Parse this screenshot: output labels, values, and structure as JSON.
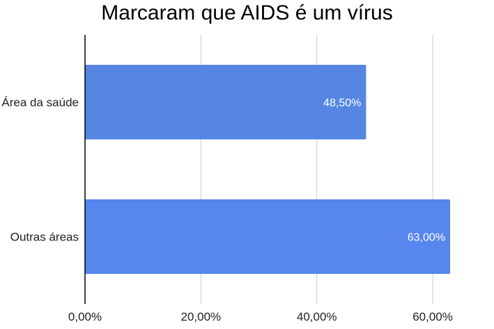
{
  "chart_data": {
    "type": "bar",
    "orientation": "horizontal",
    "title": "Marcaram que AIDS é um vírus",
    "categories": [
      "Área da saúde",
      "Outras áreas"
    ],
    "values": [
      48.5,
      63.0
    ],
    "data_labels": [
      "48,50%",
      "63,00%"
    ],
    "xlim": [
      0,
      63
    ],
    "x_ticks": [
      0,
      20,
      40,
      60
    ],
    "x_tick_labels": [
      "0,00%",
      "20,00%",
      "40,00%",
      "60,00%"
    ],
    "grid": true,
    "legend": "none",
    "bar_colors": [
      "#5686e2",
      "#5686ee"
    ],
    "grid_color": "#cccccc",
    "axis_color": "#000000"
  }
}
